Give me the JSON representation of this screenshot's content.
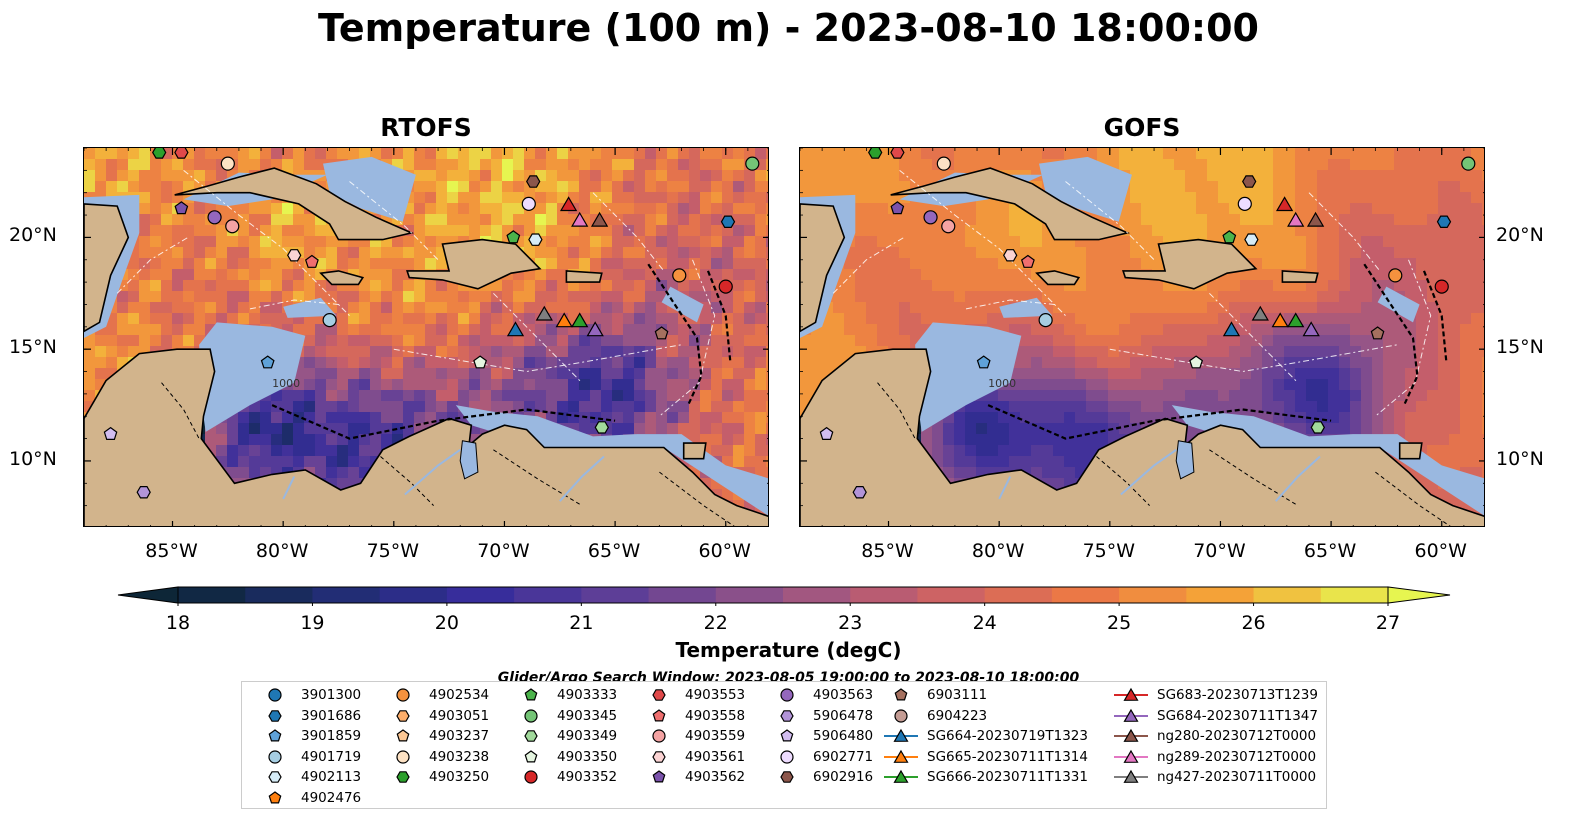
{
  "title": "Temperature (100 m) - 2023-08-10 18:00:00",
  "panels": [
    {
      "id": "rtofs",
      "title": "RTOFS"
    },
    {
      "id": "gofs",
      "title": "GOFS"
    }
  ],
  "map": {
    "lon_range": [
      -89,
      -58
    ],
    "lat_range": [
      7,
      24
    ],
    "x_ticks": [
      -85,
      -80,
      -75,
      -70,
      -65,
      -60
    ],
    "x_tick_labels": [
      "85°W",
      "80°W",
      "75°W",
      "70°W",
      "65°W",
      "60°W"
    ],
    "y_ticks": [
      10,
      15,
      20
    ],
    "y_tick_labels": [
      "10°N",
      "15°N",
      "20°N"
    ],
    "land_color": "#d2b48c",
    "shelf_color": "#9ab8e0",
    "contour_labels": [
      "1000"
    ]
  },
  "colorbar": {
    "label": "Temperature (degC)",
    "min": 18,
    "max": 27,
    "step": 0.5,
    "ticks": [
      18,
      19,
      20,
      21,
      22,
      23,
      24,
      25,
      26,
      27
    ],
    "tick_labels": [
      "18",
      "19",
      "20",
      "21",
      "22",
      "23",
      "24",
      "25",
      "26",
      "27"
    ],
    "extend": "both",
    "colormap": "thermal"
  },
  "search_window": "Glider/Argo Search Window: 2023-08-05 19:00:00 to 2023-08-10 18:00:00",
  "legend": {
    "columns": [
      [
        {
          "label": "3901300",
          "marker": "circle",
          "color": "#1f77b4"
        },
        {
          "label": "3901686",
          "marker": "hexagon",
          "color": "#1f77b4"
        },
        {
          "label": "3901859",
          "marker": "pentagon",
          "color": "#5fa2d9"
        },
        {
          "label": "4901719",
          "marker": "circle",
          "color": "#a6cee3"
        },
        {
          "label": "4902113",
          "marker": "hexagon",
          "color": "#d6ecf7"
        },
        {
          "label": "4902476",
          "marker": "pentagon",
          "color": "#ff7f0e"
        }
      ],
      [
        {
          "label": "4902534",
          "marker": "circle",
          "color": "#f5923e"
        },
        {
          "label": "4903051",
          "marker": "hexagon",
          "color": "#fdae6b"
        },
        {
          "label": "4903237",
          "marker": "pentagon",
          "color": "#fdc895"
        },
        {
          "label": "4903238",
          "marker": "circle",
          "color": "#fde2c4"
        },
        {
          "label": "4903250",
          "marker": "hexagon",
          "color": "#2ca02c"
        }
      ],
      [
        {
          "label": "4903333",
          "marker": "pentagon",
          "color": "#4bb34b"
        },
        {
          "label": "4903345",
          "marker": "circle",
          "color": "#74c476"
        },
        {
          "label": "4903349",
          "marker": "hexagon",
          "color": "#a1d99b"
        },
        {
          "label": "4903350",
          "marker": "pentagon",
          "color": "#e5f5e0"
        },
        {
          "label": "4903352",
          "marker": "circle",
          "color": "#d62728"
        }
      ],
      [
        {
          "label": "4903553",
          "marker": "hexagon",
          "color": "#e0494a"
        },
        {
          "label": "4903558",
          "marker": "pentagon",
          "color": "#ef6f6f"
        },
        {
          "label": "4903559",
          "marker": "circle",
          "color": "#f4a3a3"
        },
        {
          "label": "4903561",
          "marker": "hexagon",
          "color": "#fbd3d3"
        },
        {
          "label": "4903562",
          "marker": "pentagon",
          "color": "#7b52ab"
        }
      ],
      [
        {
          "label": "4903563",
          "marker": "circle",
          "color": "#9467bd"
        },
        {
          "label": "5906478",
          "marker": "hexagon",
          "color": "#b294d8"
        },
        {
          "label": "5906480",
          "marker": "pentagon",
          "color": "#d2bdf0"
        },
        {
          "label": "6902771",
          "marker": "circle",
          "color": "#eedcff"
        },
        {
          "label": "6902916",
          "marker": "hexagon",
          "color": "#8c564b"
        }
      ],
      [
        {
          "label": "6903111",
          "marker": "pentagon",
          "color": "#a5705f"
        },
        {
          "label": "6904223",
          "marker": "circle",
          "color": "#c49c94"
        },
        {
          "label": "SG664-20230719T1323",
          "marker": "triangle",
          "color": "#1f77b4",
          "line": true
        },
        {
          "label": "SG665-20230711T1314",
          "marker": "triangle",
          "color": "#ff7f0e",
          "line": true
        },
        {
          "label": "SG666-20230711T1331",
          "marker": "triangle",
          "color": "#2ca02c",
          "line": true
        }
      ],
      [
        {
          "label": "SG683-20230713T1239",
          "marker": "triangle",
          "color": "#d62728",
          "line": true
        },
        {
          "label": "SG684-20230711T1347",
          "marker": "triangle",
          "color": "#9467bd",
          "line": true
        },
        {
          "label": "ng280-20230712T0000",
          "marker": "triangle",
          "color": "#8c564b",
          "line": true
        },
        {
          "label": "ng289-20230712T0000",
          "marker": "triangle",
          "color": "#e377c2",
          "line": true
        },
        {
          "label": "ng427-20230711T0000",
          "marker": "triangle",
          "color": "#7f7f7f",
          "line": true
        }
      ]
    ]
  },
  "observations": [
    {
      "id": "4903345",
      "lon": -58.8,
      "lat": 23.3
    },
    {
      "id": "3901686",
      "lon": -59.9,
      "lat": 20.7
    },
    {
      "id": "4903352",
      "lon": -60.0,
      "lat": 17.8
    },
    {
      "id": "4902534",
      "lon": -62.1,
      "lat": 18.3
    },
    {
      "id": "6903111",
      "lon": -62.9,
      "lat": 15.7
    },
    {
      "id": "4903349",
      "lon": -65.6,
      "lat": 11.5
    },
    {
      "id": "6902916",
      "lon": -68.7,
      "lat": 22.5
    },
    {
      "id": "6902771",
      "lon": -68.9,
      "lat": 21.5
    },
    {
      "id": "4902113",
      "lon": -68.6,
      "lat": 19.9
    },
    {
      "id": "4903333",
      "lon": -69.6,
      "lat": 20.0
    },
    {
      "id": "4903350",
      "lon": -71.1,
      "lat": 14.4
    },
    {
      "id": "4901719",
      "lon": -77.9,
      "lat": 16.3
    },
    {
      "id": "3901859",
      "lon": -80.7,
      "lat": 14.4
    },
    {
      "id": "4903561",
      "lon": -79.5,
      "lat": 19.2
    },
    {
      "id": "4903558",
      "lon": -78.7,
      "lat": 18.9
    },
    {
      "id": "4903559",
      "lon": -82.3,
      "lat": 20.5
    },
    {
      "id": "4903563",
      "lon": -83.1,
      "lat": 20.9
    },
    {
      "id": "4903562",
      "lon": -84.6,
      "lat": 21.3
    },
    {
      "id": "4903238",
      "lon": -82.5,
      "lat": 23.3
    },
    {
      "id": "4903553",
      "lon": -84.6,
      "lat": 23.8
    },
    {
      "id": "4903250",
      "lon": -85.6,
      "lat": 23.8
    },
    {
      "id": "5906480",
      "lon": -87.8,
      "lat": 11.2
    },
    {
      "id": "5906478",
      "lon": -86.3,
      "lat": 8.6
    },
    {
      "id": "SG683-20230713T1239",
      "lon": -67.1,
      "lat": 21.4
    },
    {
      "id": "ng289-20230712T0000",
      "lon": -66.6,
      "lat": 20.7
    },
    {
      "id": "ng280-20230712T0000",
      "lon": -65.7,
      "lat": 20.7
    },
    {
      "id": "SG664-20230719T1323",
      "lon": -69.5,
      "lat": 15.8
    },
    {
      "id": "ng427-20230711T0000",
      "lon": -68.2,
      "lat": 16.5
    },
    {
      "id": "SG665-20230711T1314",
      "lon": -67.3,
      "lat": 16.2
    },
    {
      "id": "SG666-20230711T1331",
      "lon": -66.6,
      "lat": 16.2
    },
    {
      "id": "SG684-20230711T1347",
      "lon": -65.9,
      "lat": 15.8
    }
  ]
}
